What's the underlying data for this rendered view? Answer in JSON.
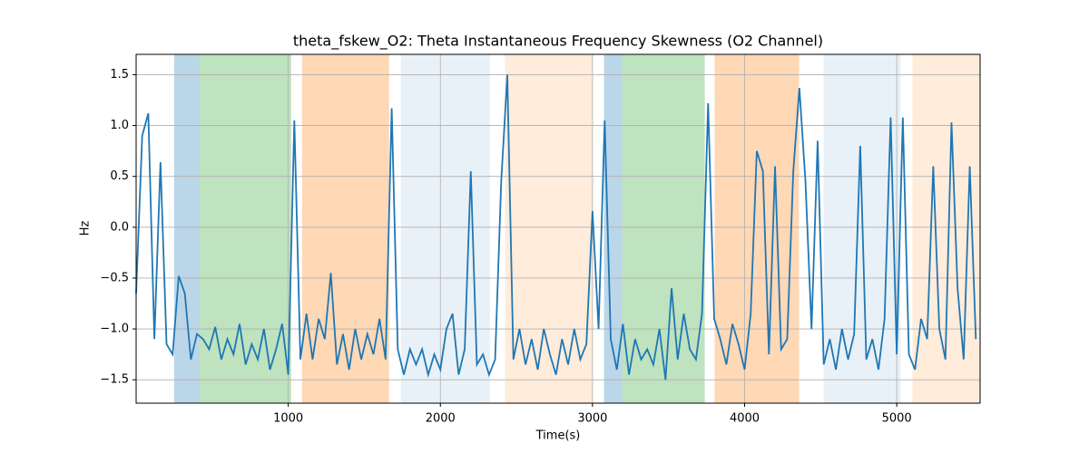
{
  "chart_data": {
    "type": "line",
    "title": "theta_fskew_O2: Theta Instantaneous Frequency Skewness (O2 Channel)",
    "x_label": "Time(s)",
    "y_label": "Hz",
    "xlim": [
      0,
      5548
    ],
    "ylim": [
      -1.73,
      1.7
    ],
    "xticks": [
      1000,
      2000,
      3000,
      4000,
      5000
    ],
    "yticks": [
      {
        "value": -1.5,
        "label": "−1.5"
      },
      {
        "value": -1.0,
        "label": "−1.0"
      },
      {
        "value": -0.5,
        "label": "−0.5"
      },
      {
        "value": 0,
        "label": "0.0"
      },
      {
        "value": 0.5,
        "label": "0.5"
      },
      {
        "value": 1.0,
        "label": "1.0"
      },
      {
        "value": 1.5,
        "label": "1.5"
      }
    ],
    "grid": true,
    "spans": [
      {
        "start": 250,
        "end": 417,
        "color": "#1f77b4",
        "opacity": 0.3
      },
      {
        "start": 417,
        "end": 1019,
        "color": "#2ca02c",
        "opacity": 0.3
      },
      {
        "start": 1091,
        "end": 1663,
        "color": "#ff7f0e",
        "opacity": 0.3
      },
      {
        "start": 1741,
        "end": 2325,
        "color": "#1f77b4",
        "opacity": 0.1
      },
      {
        "start": 2426,
        "end": 3004,
        "color": "#ff7f0e",
        "opacity": 0.15
      },
      {
        "start": 3076,
        "end": 3195,
        "color": "#1f77b4",
        "opacity": 0.3
      },
      {
        "start": 3195,
        "end": 3738,
        "color": "#2ca02c",
        "opacity": 0.3
      },
      {
        "start": 3803,
        "end": 4358,
        "color": "#ff7f0e",
        "opacity": 0.3
      },
      {
        "start": 4519,
        "end": 5025,
        "color": "#1f77b4",
        "opacity": 0.1
      },
      {
        "start": 5103,
        "end": 5548,
        "color": "#ff7f0e",
        "opacity": 0.15
      }
    ],
    "x": [
      0,
      40,
      80,
      120,
      160,
      200,
      240,
      280,
      320,
      360,
      400,
      440,
      480,
      520,
      560,
      600,
      640,
      680,
      720,
      760,
      800,
      840,
      880,
      920,
      960,
      1000,
      1040,
      1080,
      1120,
      1160,
      1200,
      1240,
      1280,
      1320,
      1360,
      1400,
      1440,
      1480,
      1520,
      1560,
      1600,
      1640,
      1680,
      1720,
      1760,
      1800,
      1840,
      1880,
      1920,
      1960,
      2000,
      2040,
      2080,
      2120,
      2160,
      2200,
      2240,
      2280,
      2320,
      2360,
      2400,
      2440,
      2480,
      2520,
      2560,
      2600,
      2640,
      2680,
      2720,
      2760,
      2800,
      2840,
      2880,
      2920,
      2960,
      3000,
      3040,
      3080,
      3120,
      3160,
      3200,
      3240,
      3280,
      3320,
      3360,
      3400,
      3440,
      3480,
      3520,
      3560,
      3600,
      3640,
      3680,
      3720,
      3760,
      3800,
      3840,
      3880,
      3920,
      3960,
      4000,
      4040,
      4080,
      4120,
      4160,
      4200,
      4240,
      4280,
      4320,
      4360,
      4400,
      4440,
      4480,
      4520,
      4560,
      4600,
      4640,
      4680,
      4720,
      4760,
      4800,
      4840,
      4880,
      4920,
      4960,
      5000,
      5040,
      5080,
      5120,
      5160,
      5200,
      5240,
      5280,
      5320,
      5360,
      5400,
      5440,
      5480,
      5520
    ],
    "series": [
      {
        "color": "#1f77b4",
        "values": [
          -0.65,
          0.9,
          1.12,
          -1.1,
          0.64,
          -1.15,
          -1.25,
          -0.48,
          -0.65,
          -1.3,
          -1.05,
          -1.1,
          -1.2,
          -0.98,
          -1.3,
          -1.1,
          -1.25,
          -0.95,
          -1.35,
          -1.15,
          -1.3,
          -1.0,
          -1.4,
          -1.2,
          -0.95,
          -1.45,
          1.05,
          -1.3,
          -0.85,
          -1.3,
          -0.9,
          -1.1,
          -0.45,
          -1.35,
          -1.05,
          -1.4,
          -1.0,
          -1.3,
          -1.05,
          -1.25,
          -0.9,
          -1.3,
          1.17,
          -1.2,
          -1.45,
          -1.2,
          -1.35,
          -1.2,
          -1.45,
          -1.25,
          -1.4,
          -1.0,
          -0.85,
          -1.45,
          -1.2,
          0.55,
          -1.35,
          -1.25,
          -1.45,
          -1.3,
          0.45,
          1.5,
          -1.3,
          -1.0,
          -1.35,
          -1.1,
          -1.4,
          -1.0,
          -1.25,
          -1.45,
          -1.1,
          -1.35,
          -1.0,
          -1.3,
          -1.15,
          0.16,
          -1.0,
          1.05,
          -1.1,
          -1.4,
          -0.95,
          -1.45,
          -1.1,
          -1.3,
          -1.2,
          -1.35,
          -1.0,
          -1.5,
          -0.6,
          -1.3,
          -0.85,
          -1.2,
          -1.3,
          -0.85,
          1.22,
          -0.9,
          -1.1,
          -1.35,
          -0.95,
          -1.15,
          -1.4,
          -0.85,
          0.75,
          0.55,
          -1.25,
          0.6,
          -1.2,
          -1.1,
          0.55,
          1.37,
          0.45,
          -1.0,
          0.85,
          -1.35,
          -1.1,
          -1.4,
          -1.0,
          -1.3,
          -1.05,
          0.8,
          -1.3,
          -1.1,
          -1.4,
          -0.9,
          1.08,
          -1.25,
          1.08,
          -1.25,
          -1.4,
          -0.9,
          -1.1,
          0.6,
          -1.0,
          -1.3,
          1.03,
          -0.6,
          -1.3,
          0.6,
          -1.1
        ]
      }
    ]
  }
}
